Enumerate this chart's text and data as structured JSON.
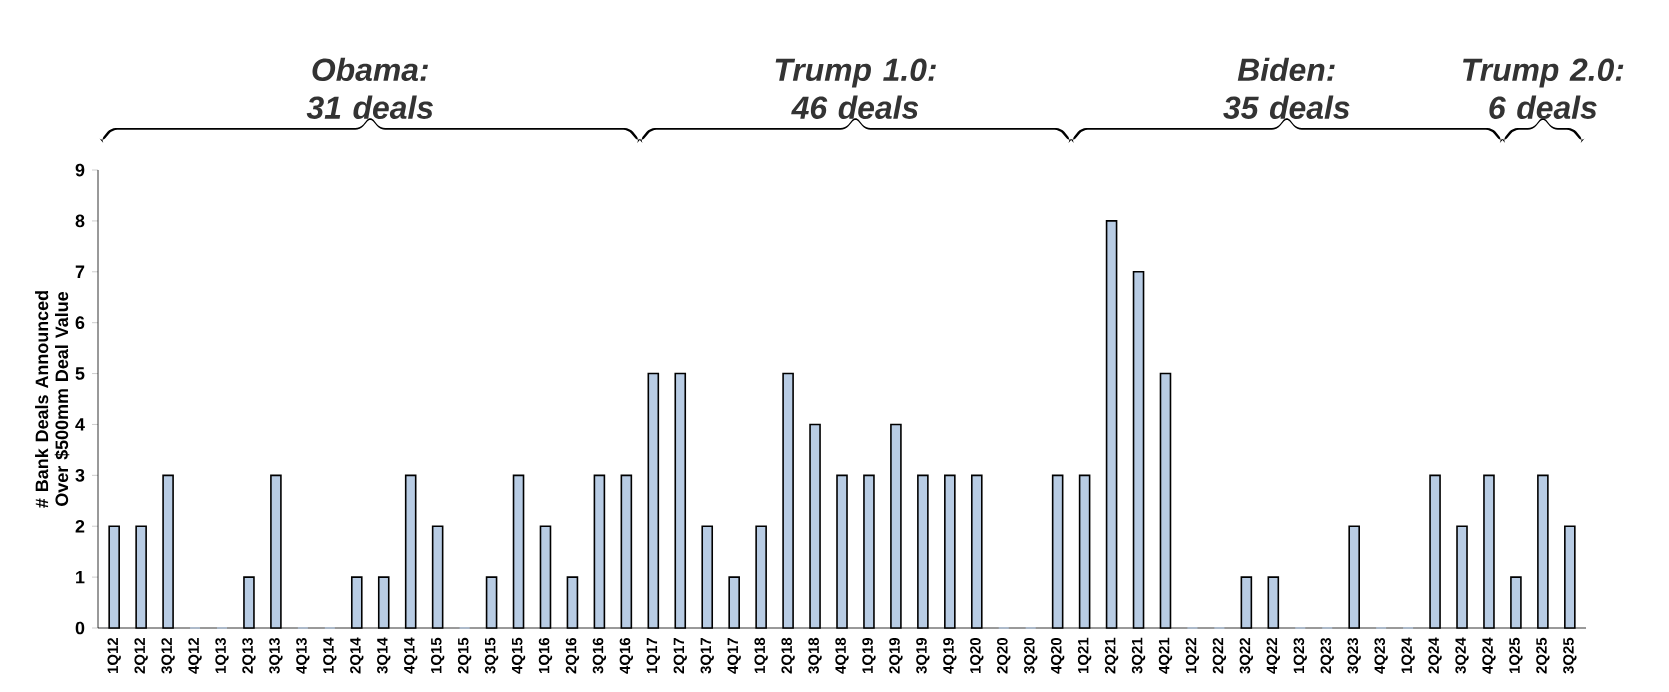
{
  "chart_data": {
    "type": "bar",
    "ylabel": "# Bank Deals Announced Over $500mm Deal Value",
    "categories": [
      "1Q12",
      "2Q12",
      "3Q12",
      "4Q12",
      "1Q13",
      "2Q13",
      "3Q13",
      "4Q13",
      "1Q14",
      "2Q14",
      "3Q14",
      "4Q14",
      "1Q15",
      "2Q15",
      "3Q15",
      "4Q15",
      "1Q16",
      "2Q16",
      "3Q16",
      "4Q16",
      "1Q17",
      "2Q17",
      "3Q17",
      "4Q17",
      "1Q18",
      "2Q18",
      "3Q18",
      "4Q18",
      "1Q19",
      "2Q19",
      "3Q19",
      "4Q19",
      "1Q20",
      "2Q20",
      "3Q20",
      "4Q20",
      "1Q21",
      "2Q21",
      "3Q21",
      "4Q21",
      "1Q22",
      "2Q22",
      "3Q22",
      "4Q22",
      "1Q23",
      "2Q23",
      "3Q23",
      "4Q23",
      "1Q24",
      "2Q24",
      "3Q24",
      "4Q24",
      "1Q25",
      "2Q25",
      "3Q25"
    ],
    "values": [
      2,
      2,
      3,
      0,
      0,
      1,
      3,
      0,
      0,
      1,
      1,
      3,
      2,
      0,
      1,
      3,
      2,
      1,
      3,
      3,
      5,
      5,
      2,
      1,
      2,
      5,
      4,
      3,
      3,
      4,
      3,
      3,
      3,
      0,
      0,
      3,
      3,
      8,
      7,
      5,
      0,
      0,
      1,
      1,
      0,
      0,
      2,
      0,
      0,
      3,
      2,
      3,
      1,
      3,
      2
    ],
    "color": "#b8cce4",
    "ylim": [
      0,
      9
    ],
    "yticks": [
      0,
      1,
      2,
      3,
      4,
      5,
      6,
      7,
      8,
      9
    ],
    "annotations": [
      "Obama: 31 deals",
      "Trump 1.0: 46 deals",
      "Biden: 35 deals",
      "Trump 2.0: 6 deals"
    ]
  }
}
